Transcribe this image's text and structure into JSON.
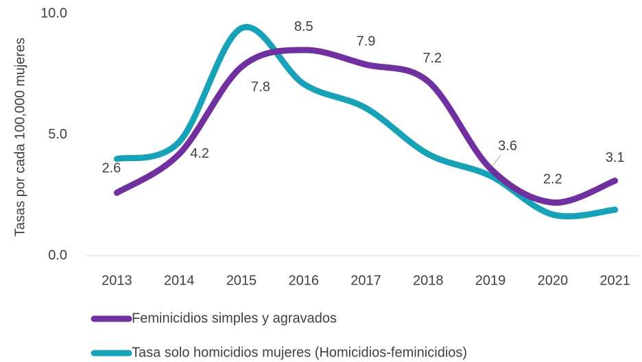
{
  "chart_data": {
    "type": "line",
    "y_label": "Tasas por cada 100,000 mujeres",
    "categories": [
      "2013",
      "2014",
      "2015",
      "2016",
      "2017",
      "2018",
      "2019",
      "2020",
      "2021"
    ],
    "series": [
      {
        "name": "Feminicidios simples y agravados",
        "color": "#7030a0",
        "values": [
          2.6,
          4.2,
          7.8,
          8.5,
          7.9,
          7.2,
          3.6,
          2.2,
          3.1
        ],
        "data_labels": true
      },
      {
        "name": "Tasa solo homicidios mujeres (Homicidios-feminicidios)",
        "color": "#17a2b8",
        "values": [
          4.0,
          4.7,
          9.4,
          7.1,
          6.1,
          4.2,
          3.3,
          1.7,
          1.9
        ],
        "data_labels": false
      }
    ],
    "ylim": [
      0,
      10
    ],
    "yticks": [
      {
        "value": 0,
        "label": "0.0"
      },
      {
        "value": 5,
        "label": "5.0"
      },
      {
        "value": 10,
        "label": "10.0"
      }
    ],
    "grid": false,
    "smooth": true,
    "legend": "bottom"
  }
}
